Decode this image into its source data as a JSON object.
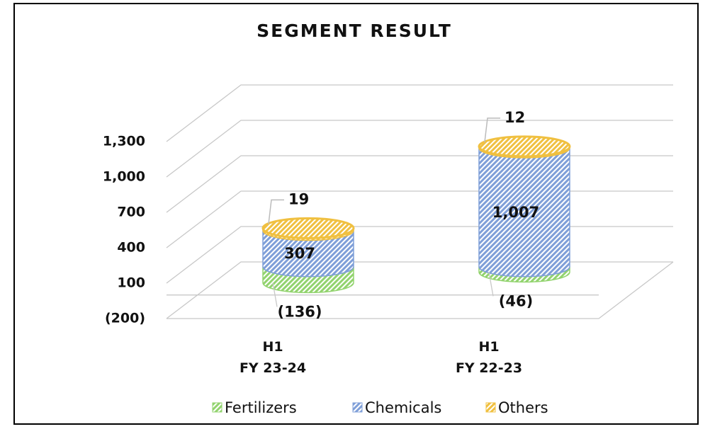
{
  "chart_data": {
    "type": "cylinder-stacked",
    "title": "SEGMENT RESULT",
    "categories": [
      "H1\nFY 23-24",
      "H1\nFY 22-23"
    ],
    "series": [
      {
        "name": "Fertilizers",
        "color": "#92d36e",
        "values": [
          -136,
          -46
        ],
        "value_labels": [
          "(136)",
          "(46)"
        ]
      },
      {
        "name": "Chemicals",
        "color": "#7f9fd8",
        "values": [
          307,
          1007
        ],
        "value_labels": [
          "307",
          "1,007"
        ]
      },
      {
        "name": "Others",
        "color": "#f0c040",
        "values": [
          19,
          12
        ]
      }
    ],
    "ylim": [
      -200,
      1300
    ],
    "yticks": [
      {
        "value": -200,
        "label": "(200)"
      },
      100,
      400,
      700,
      {
        "value": 1000,
        "label": "1,000"
      },
      {
        "value": 1300,
        "label": "1,300"
      }
    ],
    "grid": true,
    "legend": "bottom"
  }
}
